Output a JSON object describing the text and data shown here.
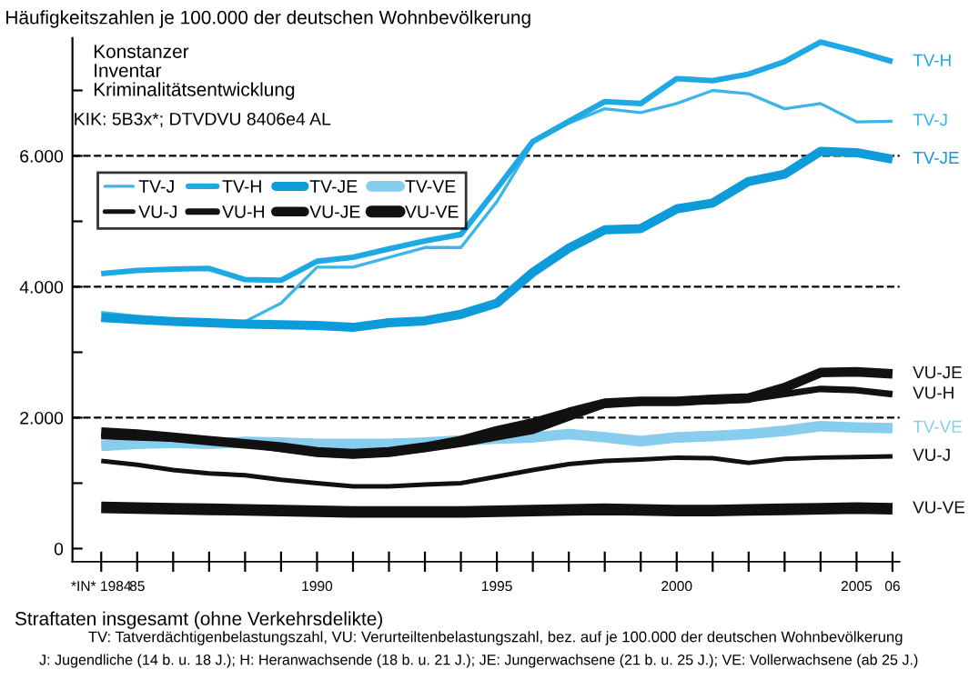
{
  "chart_data": {
    "type": "line",
    "title": "Häufigkeitszahlen je 100.000 der deutschen Wohnbevölkerung",
    "xlabel": "Straftaten insgesamt (ohne Verkehrsdelikte)",
    "annotations": [
      "Konstanzer\nInventar\nKriminalitätsentwicklung",
      "KIK: 5B3x*; DTVDVU 8406e4 AL",
      "TV: Tatverdächtigenbelastungszahl, VU: Verurteiltenbelastungszahl, bez. auf je 100.000 der deutschen Wohnbevölkerung",
      "J: Jugendliche (14 b. u. 18 J.); H: Heranwachsende (18 b. u. 21 J.); JE: Jungerwachsene (21 b. u. 25 J.); VE: Vollerwachsene (ab 25 J.)"
    ],
    "x": [
      1984,
      1985,
      1986,
      1987,
      1988,
      1989,
      1990,
      1991,
      1992,
      1993,
      1994,
      1995,
      1996,
      1997,
      1998,
      1999,
      2000,
      2001,
      2002,
      2003,
      2004,
      2005,
      2006
    ],
    "xlim": [
      1983.2,
      2006.2
    ],
    "xticks": [
      {
        "value": 1984,
        "label": "*IN* 1984"
      },
      {
        "value": 1985,
        "label": "85"
      },
      {
        "value": 1986,
        "label": null
      },
      {
        "value": 1987,
        "label": null
      },
      {
        "value": 1988,
        "label": null
      },
      {
        "value": 1989,
        "label": null
      },
      1990,
      {
        "value": 1991,
        "label": null
      },
      {
        "value": 1992,
        "label": null
      },
      {
        "value": 1993,
        "label": null
      },
      {
        "value": 1994,
        "label": null
      },
      1995,
      {
        "value": 1996,
        "label": null
      },
      {
        "value": 1997,
        "label": null
      },
      {
        "value": 1998,
        "label": null
      },
      {
        "value": 1999,
        "label": null
      },
      2000,
      {
        "value": 2001,
        "label": null
      },
      {
        "value": 2002,
        "label": null
      },
      {
        "value": 2003,
        "label": null
      },
      {
        "value": 2004,
        "label": null
      },
      2005,
      {
        "value": 2006,
        "label": "06"
      }
    ],
    "ylim": [
      -200,
      7800
    ],
    "yticks": [
      {
        "value": 0,
        "label": "0"
      },
      {
        "value": 1000,
        "label": null
      },
      {
        "value": 2000,
        "label": "2.000"
      },
      {
        "value": 3000,
        "label": null
      },
      {
        "value": 4000,
        "label": "4.000"
      },
      {
        "value": 5000,
        "label": null
      },
      {
        "value": 6000,
        "label": "6.000"
      },
      {
        "value": 7000,
        "label": null
      }
    ],
    "ref_lines": [
      {
        "axis": "y",
        "value": 2000,
        "color": "#000000",
        "line_style": "dashed"
      },
      {
        "axis": "y",
        "value": 4000,
        "color": "#000000",
        "line_style": "dashed"
      },
      {
        "axis": "y",
        "value": 6000,
        "color": "#000000",
        "line_style": "dashed"
      }
    ],
    "legend": "top left",
    "grid": false,
    "marker": "none",
    "line_style": "solid",
    "series": [
      {
        "name": "TV-J",
        "color": "#3db5e8",
        "values": [
          3610,
          3550,
          3500,
          3480,
          3470,
          3750,
          4300,
          4300,
          4450,
          4600,
          4600,
          5300,
          6200,
          6500,
          6720,
          6660,
          6800,
          7000,
          6950,
          6720,
          6800,
          6520,
          6530
        ]
      },
      {
        "name": "TV-H",
        "color": "#1fa9e2",
        "values": [
          4200,
          4250,
          4270,
          4280,
          4110,
          4100,
          4390,
          4450,
          4580,
          4700,
          4800,
          5500,
          6220,
          6530,
          6830,
          6800,
          7180,
          7150,
          7250,
          7440,
          7740,
          7600,
          7440
        ]
      },
      {
        "name": "TV-JE",
        "color": "#0e9bd9",
        "values": [
          3530,
          3500,
          3470,
          3450,
          3430,
          3420,
          3410,
          3380,
          3450,
          3480,
          3580,
          3750,
          4220,
          4590,
          4870,
          4890,
          5190,
          5280,
          5610,
          5720,
          6070,
          6050,
          5950
        ]
      },
      {
        "name": "TV-VE",
        "color": "#87cdee",
        "values": [
          1570,
          1600,
          1620,
          1600,
          1630,
          1620,
          1600,
          1600,
          1600,
          1620,
          1650,
          1680,
          1700,
          1750,
          1700,
          1640,
          1700,
          1720,
          1750,
          1800,
          1870,
          1850,
          1840
        ]
      },
      {
        "name": "VU-J",
        "color": "#111111",
        "values": [
          1340,
          1280,
          1200,
          1150,
          1120,
          1050,
          1000,
          950,
          950,
          980,
          1000,
          1100,
          1200,
          1290,
          1340,
          1360,
          1390,
          1380,
          1310,
          1370,
          1390,
          1400,
          1410
        ]
      },
      {
        "name": "VU-H",
        "color": "#111111",
        "values": [
          1720,
          1700,
          1680,
          1650,
          1600,
          1520,
          1450,
          1420,
          1450,
          1520,
          1600,
          1700,
          1800,
          2000,
          2200,
          2250,
          2250,
          2250,
          2280,
          2360,
          2440,
          2420,
          2360
        ]
      },
      {
        "name": "VU-JE",
        "color": "#111111",
        "values": [
          1780,
          1750,
          1700,
          1650,
          1600,
          1550,
          1480,
          1450,
          1480,
          1550,
          1650,
          1800,
          1920,
          2080,
          2220,
          2250,
          2250,
          2280,
          2300,
          2460,
          2690,
          2700,
          2670
        ]
      },
      {
        "name": "VU-VE",
        "color": "#111111",
        "values": [
          630,
          620,
          610,
          600,
          590,
          580,
          570,
          560,
          560,
          560,
          560,
          570,
          580,
          590,
          600,
          590,
          580,
          580,
          590,
          600,
          610,
          620,
          610
        ]
      }
    ]
  }
}
